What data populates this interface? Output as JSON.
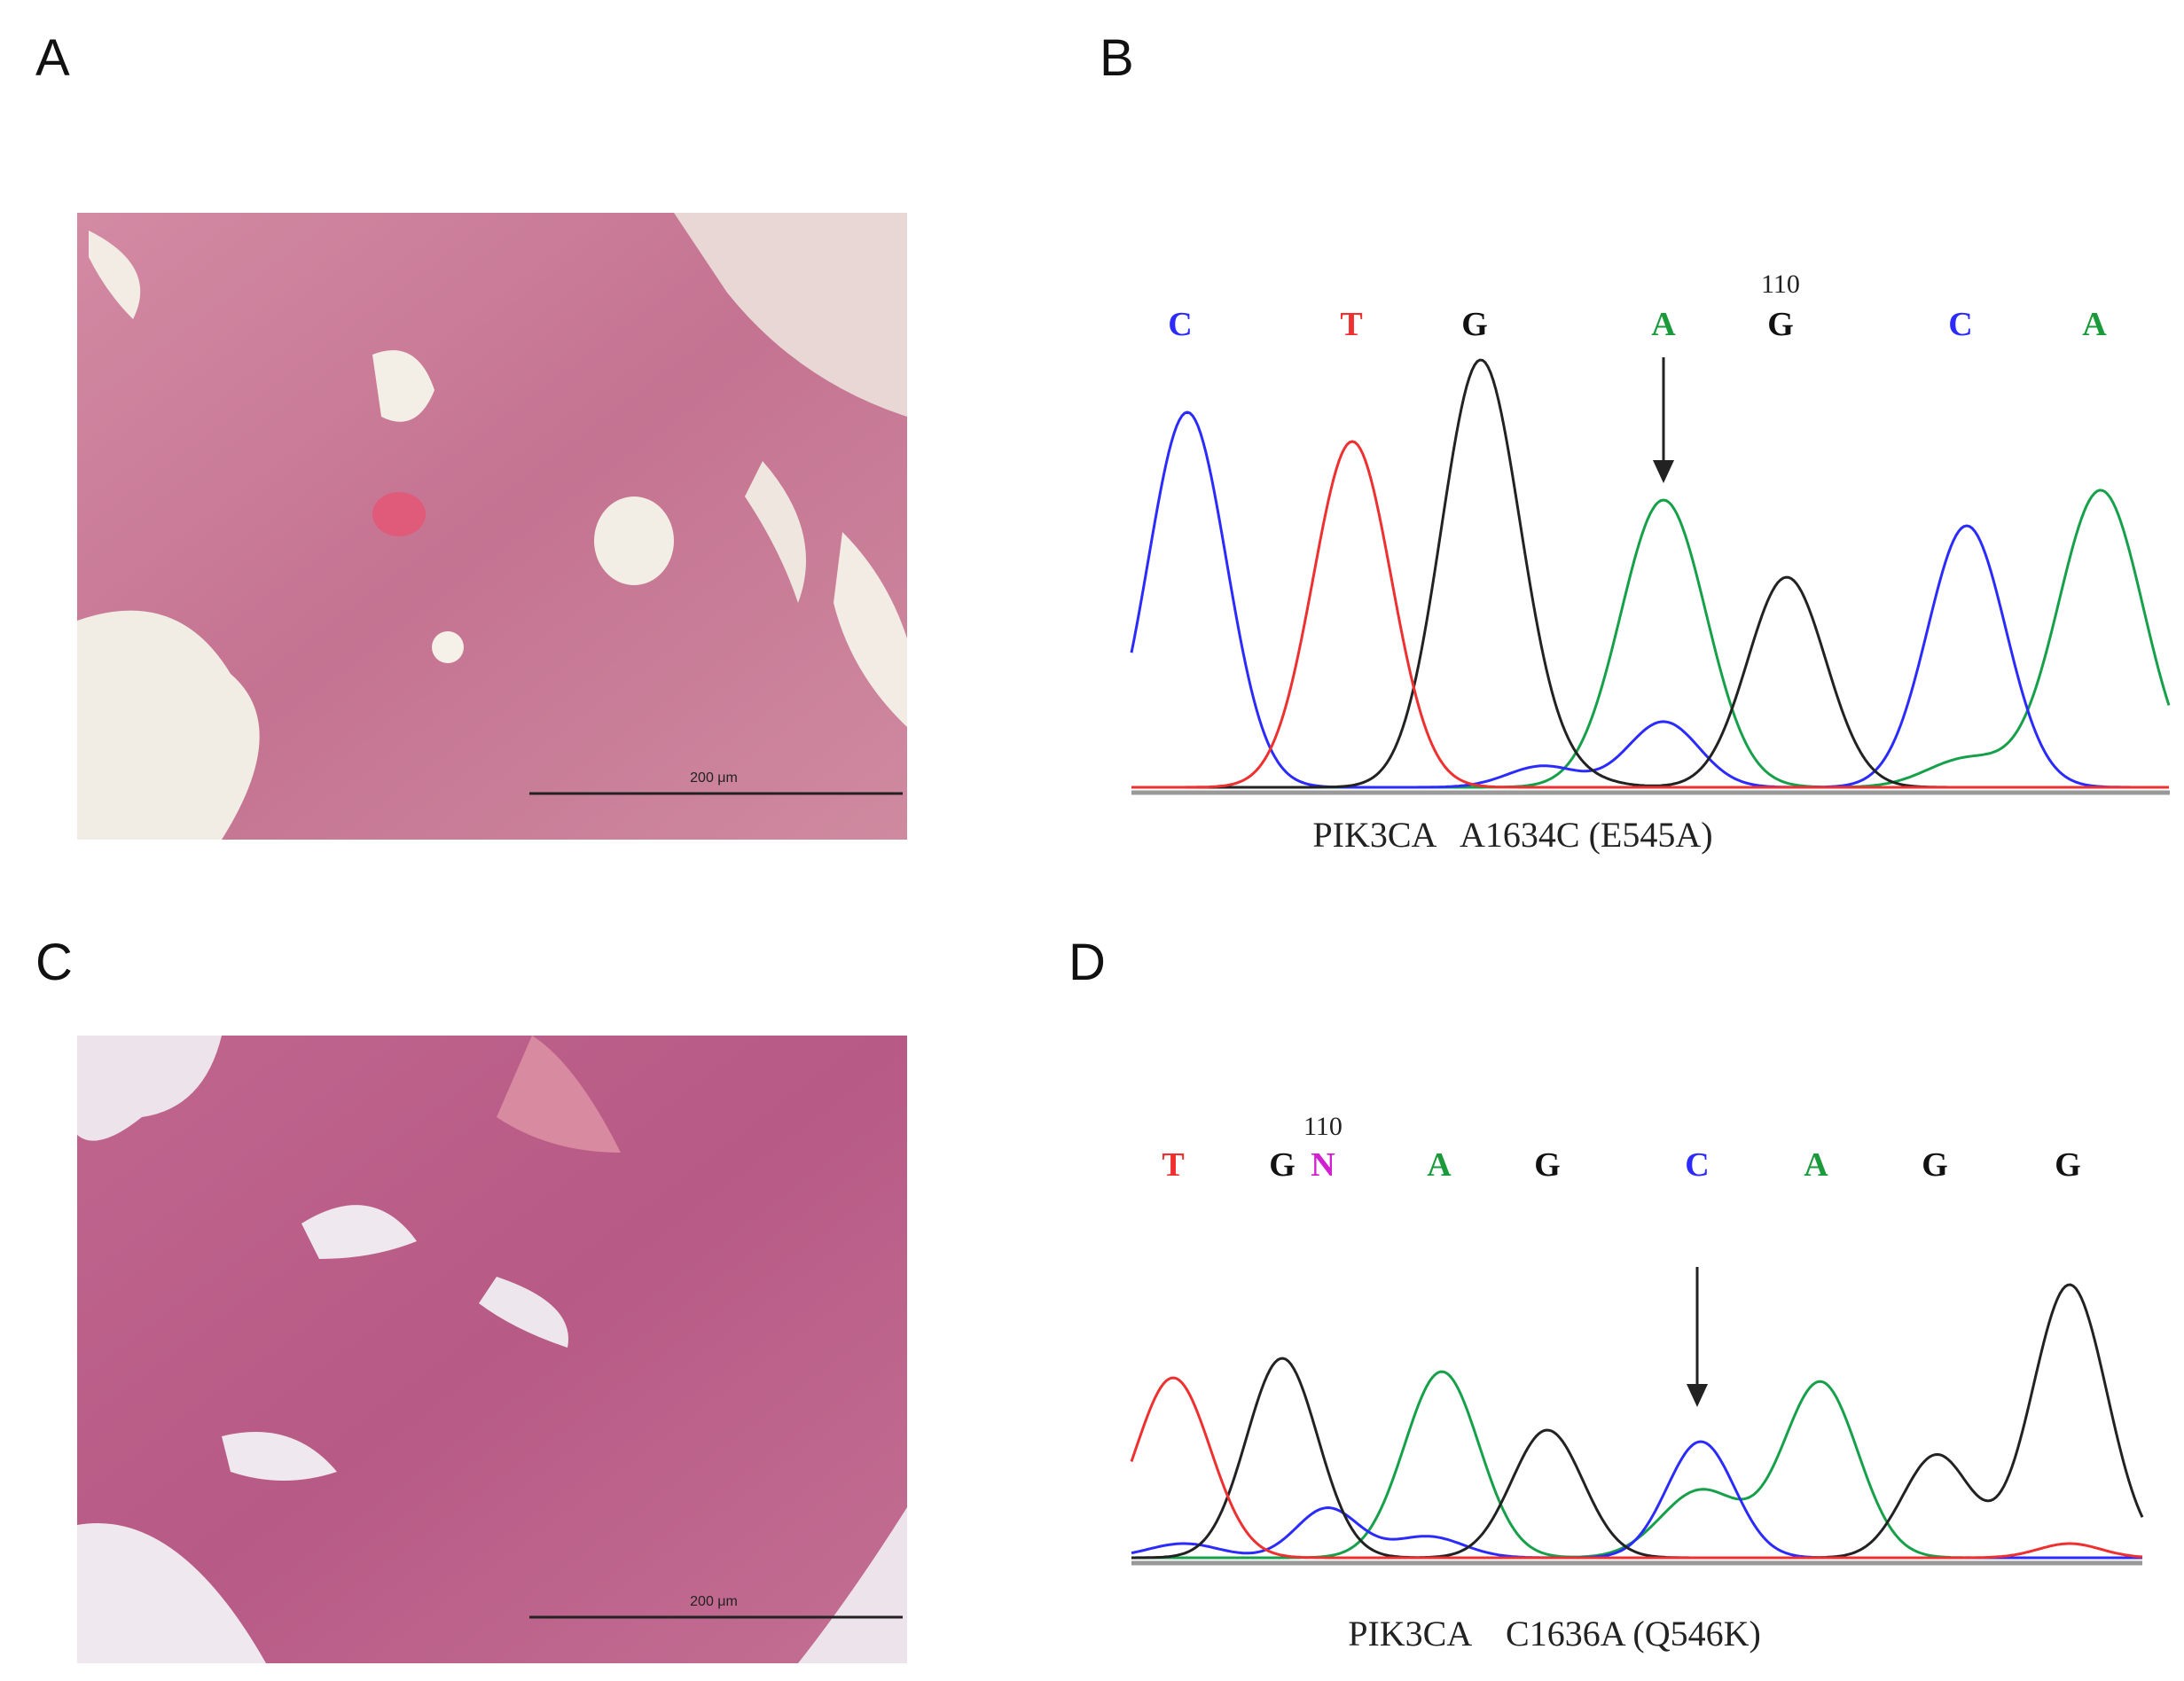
{
  "panels": [
    {
      "label": "A",
      "scale_bar": "200 μm"
    },
    {
      "label": "B",
      "bases": [
        "C",
        "T",
        "G",
        "A",
        "G",
        "C",
        "A"
      ],
      "position": "110",
      "caption": "PIK3CA   A1634C (E545A)"
    },
    {
      "label": "C",
      "scale_bar": "200 μm"
    },
    {
      "label": "D",
      "bases": [
        "T",
        "G",
        "N",
        "A",
        "G",
        "C",
        "A",
        "G",
        "G"
      ],
      "position": "110",
      "caption": "PIK3CA    C1636A (Q546K)"
    }
  ]
}
